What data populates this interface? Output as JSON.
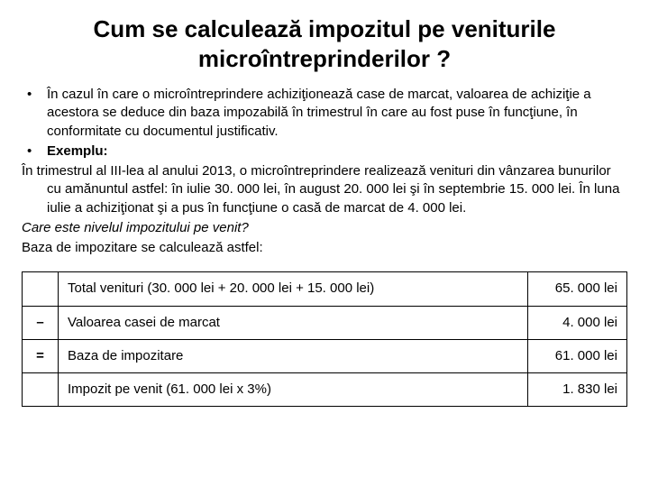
{
  "title": "Cum se calculează impozitul pe veniturile microîntreprinderilor ?",
  "bullets": [
    "În cazul în care o microîntreprindere achiziţionează case de marcat, valoarea de achiziţie a acestora se deduce din baza impozabilă în trimestrul în care au fost puse în funcţiune, în conformitate cu documentul justificativ.",
    "Exemplu:"
  ],
  "example_para": "În trimestrul al III-lea al anului 2013, o microîntreprindere realizează venituri din vânzarea bunurilor cu amănuntul astfel: în iulie 30. 000 lei, în august 20. 000 lei şi în septembrie 15. 000 lei. În luna iulie a achiziţionat şi a pus în funcţiune o casă de marcat de 4. 000 lei.",
  "question": "Care este nivelul impozitului pe venit?",
  "calc_intro": "Baza de impozitare se calculează astfel:",
  "table": {
    "rows": [
      {
        "op": "",
        "desc": "Total venituri (30. 000 lei + 20. 000 lei + 15. 000 lei)",
        "value": "65. 000 lei"
      },
      {
        "op": "–",
        "desc": "Valoarea casei de marcat",
        "value": "4. 000 lei"
      },
      {
        "op": "=",
        "desc": "Baza de impozitare",
        "value": "61. 000 lei"
      },
      {
        "op": "",
        "desc": "Impozit pe venit (61. 000 lei x 3%)",
        "value": "1. 830 lei"
      }
    ]
  },
  "colors": {
    "text": "#000000",
    "background": "#ffffff",
    "border": "#000000"
  }
}
